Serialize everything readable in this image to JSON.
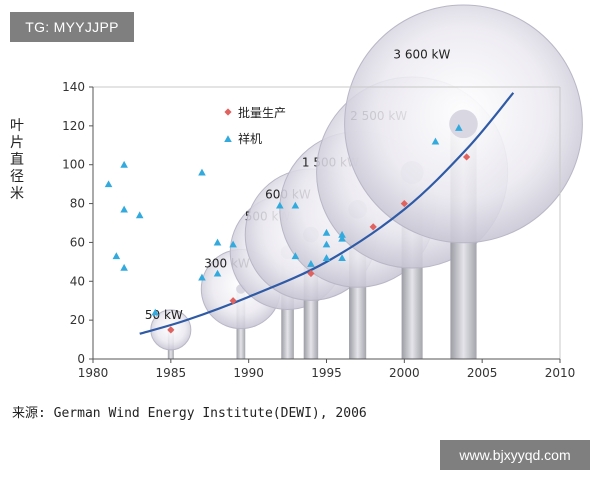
{
  "watermarks": {
    "top": "TG: MYYJJPP",
    "bottom": "www.bjxyyqd.com"
  },
  "source": "来源: German Wind Energy Institute(DEWI), 2006",
  "colors": {
    "production": "#e0625f",
    "prototype": "#33aadd",
    "trend": "#2f5aa6",
    "bubble": "#c8c6d4",
    "tower": "#bdbdc3"
  },
  "chart_data": {
    "type": "scatter",
    "title": "",
    "xlabel": "",
    "ylabel": "叶片直径米",
    "xlim": [
      1980,
      2010
    ],
    "ylim": [
      0,
      140
    ],
    "xticks": [
      1980,
      1985,
      1990,
      1995,
      2000,
      2005,
      2010
    ],
    "yticks": [
      0,
      20,
      40,
      60,
      80,
      100,
      120,
      140
    ],
    "legend": {
      "position": "top-left",
      "items": [
        "批量生产",
        "祥机"
      ]
    },
    "series": [
      {
        "name": "批量生产",
        "marker": "diamond",
        "points": [
          {
            "x": 1985,
            "y": 15
          },
          {
            "x": 1989,
            "y": 30
          },
          {
            "x": 1994,
            "y": 44
          },
          {
            "x": 1998,
            "y": 68
          },
          {
            "x": 2000,
            "y": 80
          },
          {
            "x": 2004,
            "y": 104
          }
        ]
      },
      {
        "name": "祥机",
        "marker": "triangle",
        "points": [
          {
            "x": 1981,
            "y": 90
          },
          {
            "x": 1981.5,
            "y": 53
          },
          {
            "x": 1982,
            "y": 100
          },
          {
            "x": 1982,
            "y": 77
          },
          {
            "x": 1982,
            "y": 47
          },
          {
            "x": 1983,
            "y": 74
          },
          {
            "x": 1984,
            "y": 24
          },
          {
            "x": 1987,
            "y": 96
          },
          {
            "x": 1987,
            "y": 42
          },
          {
            "x": 1988,
            "y": 60
          },
          {
            "x": 1988,
            "y": 44
          },
          {
            "x": 1989,
            "y": 59
          },
          {
            "x": 1992,
            "y": 79
          },
          {
            "x": 1993,
            "y": 79
          },
          {
            "x": 1993,
            "y": 53
          },
          {
            "x": 1994,
            "y": 49
          },
          {
            "x": 1995,
            "y": 65
          },
          {
            "x": 1995,
            "y": 59
          },
          {
            "x": 1995,
            "y": 52
          },
          {
            "x": 1996,
            "y": 64
          },
          {
            "x": 1996,
            "y": 62
          },
          {
            "x": 1996,
            "y": 52
          },
          {
            "x": 2002,
            "y": 112
          },
          {
            "x": 2003.5,
            "y": 119
          }
        ]
      },
      {
        "name": "trend",
        "type": "line",
        "points": [
          {
            "x": 1983,
            "y": 13
          },
          {
            "x": 1986,
            "y": 20
          },
          {
            "x": 1990,
            "y": 32
          },
          {
            "x": 1995,
            "y": 50
          },
          {
            "x": 2000,
            "y": 77
          },
          {
            "x": 2004,
            "y": 108
          },
          {
            "x": 2007,
            "y": 137
          }
        ]
      }
    ],
    "turbines": [
      {
        "label": "50 kW",
        "x": 1985,
        "diameter": 15
      },
      {
        "label": "300 kW",
        "x": 1989.5,
        "diameter": 36
      },
      {
        "label": "500 kW",
        "x": 1992.5,
        "diameter": 55
      },
      {
        "label": "600 kW",
        "x": 1994,
        "diameter": 64
      },
      {
        "label": "1 500 kW",
        "x": 1997,
        "diameter": 77
      },
      {
        "label": "2 500 kW",
        "x": 2000.5,
        "diameter": 96
      },
      {
        "label": "3 600 kW",
        "x": 2003.8,
        "diameter": 121
      }
    ]
  }
}
